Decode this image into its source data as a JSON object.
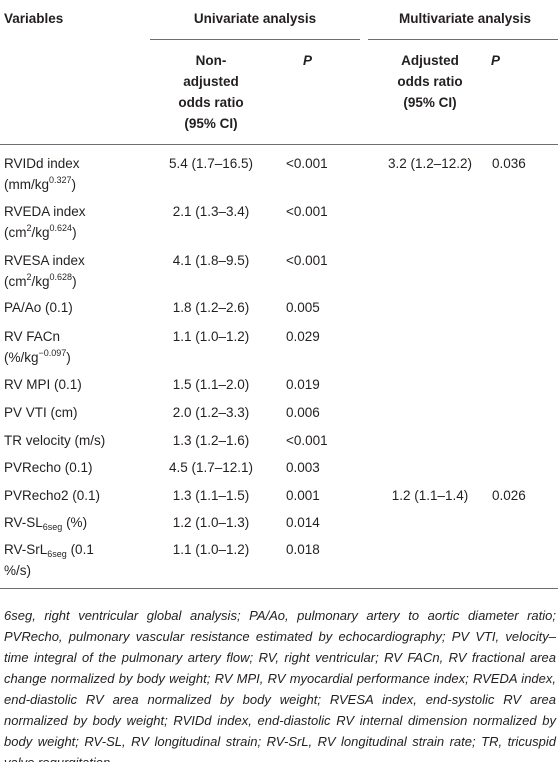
{
  "header": {
    "variables": "Variables",
    "univariate": "Univariate analysis",
    "multivariate": "Multivariate analysis",
    "nonadj_lines": [
      "Non-",
      "adjusted",
      "odds ratio",
      "(95% CI)"
    ],
    "p1": "P",
    "adj_lines": [
      "Adjusted",
      "odds ratio",
      "(95% CI)"
    ],
    "p2": "P"
  },
  "rows": [
    {
      "v1": "RVIDd index",
      "v2a": "(mm/kg",
      "v2sup": "0.327",
      "v2b": ")",
      "or": "5.4 (1.7–16.5)",
      "p": "<0.001",
      "aor": "3.2 (1.2–12.2)",
      "ap": "0.036"
    },
    {
      "v1": "RVEDA index",
      "v2a": "(cm",
      "v2sup0": "2",
      "v2mid": "/kg",
      "v2sup": "0.624",
      "v2b": ")",
      "or": "2.1 (1.3–3.4)",
      "p": "<0.001",
      "aor": "",
      "ap": ""
    },
    {
      "v1": "RVESA index",
      "v2a": "(cm",
      "v2sup0": "2",
      "v2mid": "/kg",
      "v2sup": "0.628",
      "v2b": ")",
      "or": "4.1 (1.8–9.5)",
      "p": "<0.001",
      "aor": "",
      "ap": ""
    },
    {
      "v1": "PA/Ao (0.1)",
      "or": "1.8 (1.2–2.6)",
      "p": "0.005",
      "aor": "",
      "ap": ""
    },
    {
      "v1": "RV FACn",
      "v2a": "(%/kg",
      "v2sup": "−0.097",
      "v2b": ")",
      "or": "1.1 (1.0–1.2)",
      "p": "0.029",
      "aor": "",
      "ap": ""
    },
    {
      "v1": "RV MPI (0.1)",
      "or": "1.5 (1.1–2.0)",
      "p": "0.019",
      "aor": "",
      "ap": ""
    },
    {
      "v1": "PV VTI (cm)",
      "or": "2.0 (1.2–3.3)",
      "p": "0.006",
      "aor": "",
      "ap": ""
    },
    {
      "v1": "TR velocity (m/s)",
      "or": "1.3 (1.2–1.6)",
      "p": "<0.001",
      "aor": "",
      "ap": ""
    },
    {
      "v1": "PVRecho (0.1)",
      "or": "4.5 (1.7–12.1)",
      "p": "0.003",
      "aor": "",
      "ap": ""
    },
    {
      "v1": "PVRecho2 (0.1)",
      "or": "1.3 (1.1–1.5)",
      "p": "0.001",
      "aor": "1.2 (1.1–1.4)",
      "ap": "0.026"
    },
    {
      "v1a": "RV-SL",
      "v1sub": "6seg",
      "v1b": " (%)",
      "or": "1.2 (1.0–1.3)",
      "p": "0.014",
      "aor": "",
      "ap": ""
    },
    {
      "v1a": "RV-SrL",
      "v1sub": "6seg",
      "v1b": " (0.1",
      "v2": "%/s)",
      "or": "1.1 (1.0–1.2)",
      "p": "0.018",
      "aor": "",
      "ap": ""
    }
  ],
  "footnote": "6seg, right ventricular global analysis; PA/Ao, pulmonary artery to aortic diameter ratio; PVRecho, pulmonary vascular resistance estimated by echocardiography; PV VTI, velocity–time integral of the pulmonary artery flow; RV, right ventricular; RV FACn, RV fractional area change normalized by body weight; RV MPI, RV myocardial performance index; RVEDA index, end-diastolic RV area normalized by body weight; RVESA index, end-systolic RV area normalized by body weight; RVIDd index, end-diastolic RV internal dimension normalized by body weight; RV-SL, RV longitudinal strain; RV-SrL, RV longitudinal strain rate; TR, tricuspid valve regurgitation."
}
